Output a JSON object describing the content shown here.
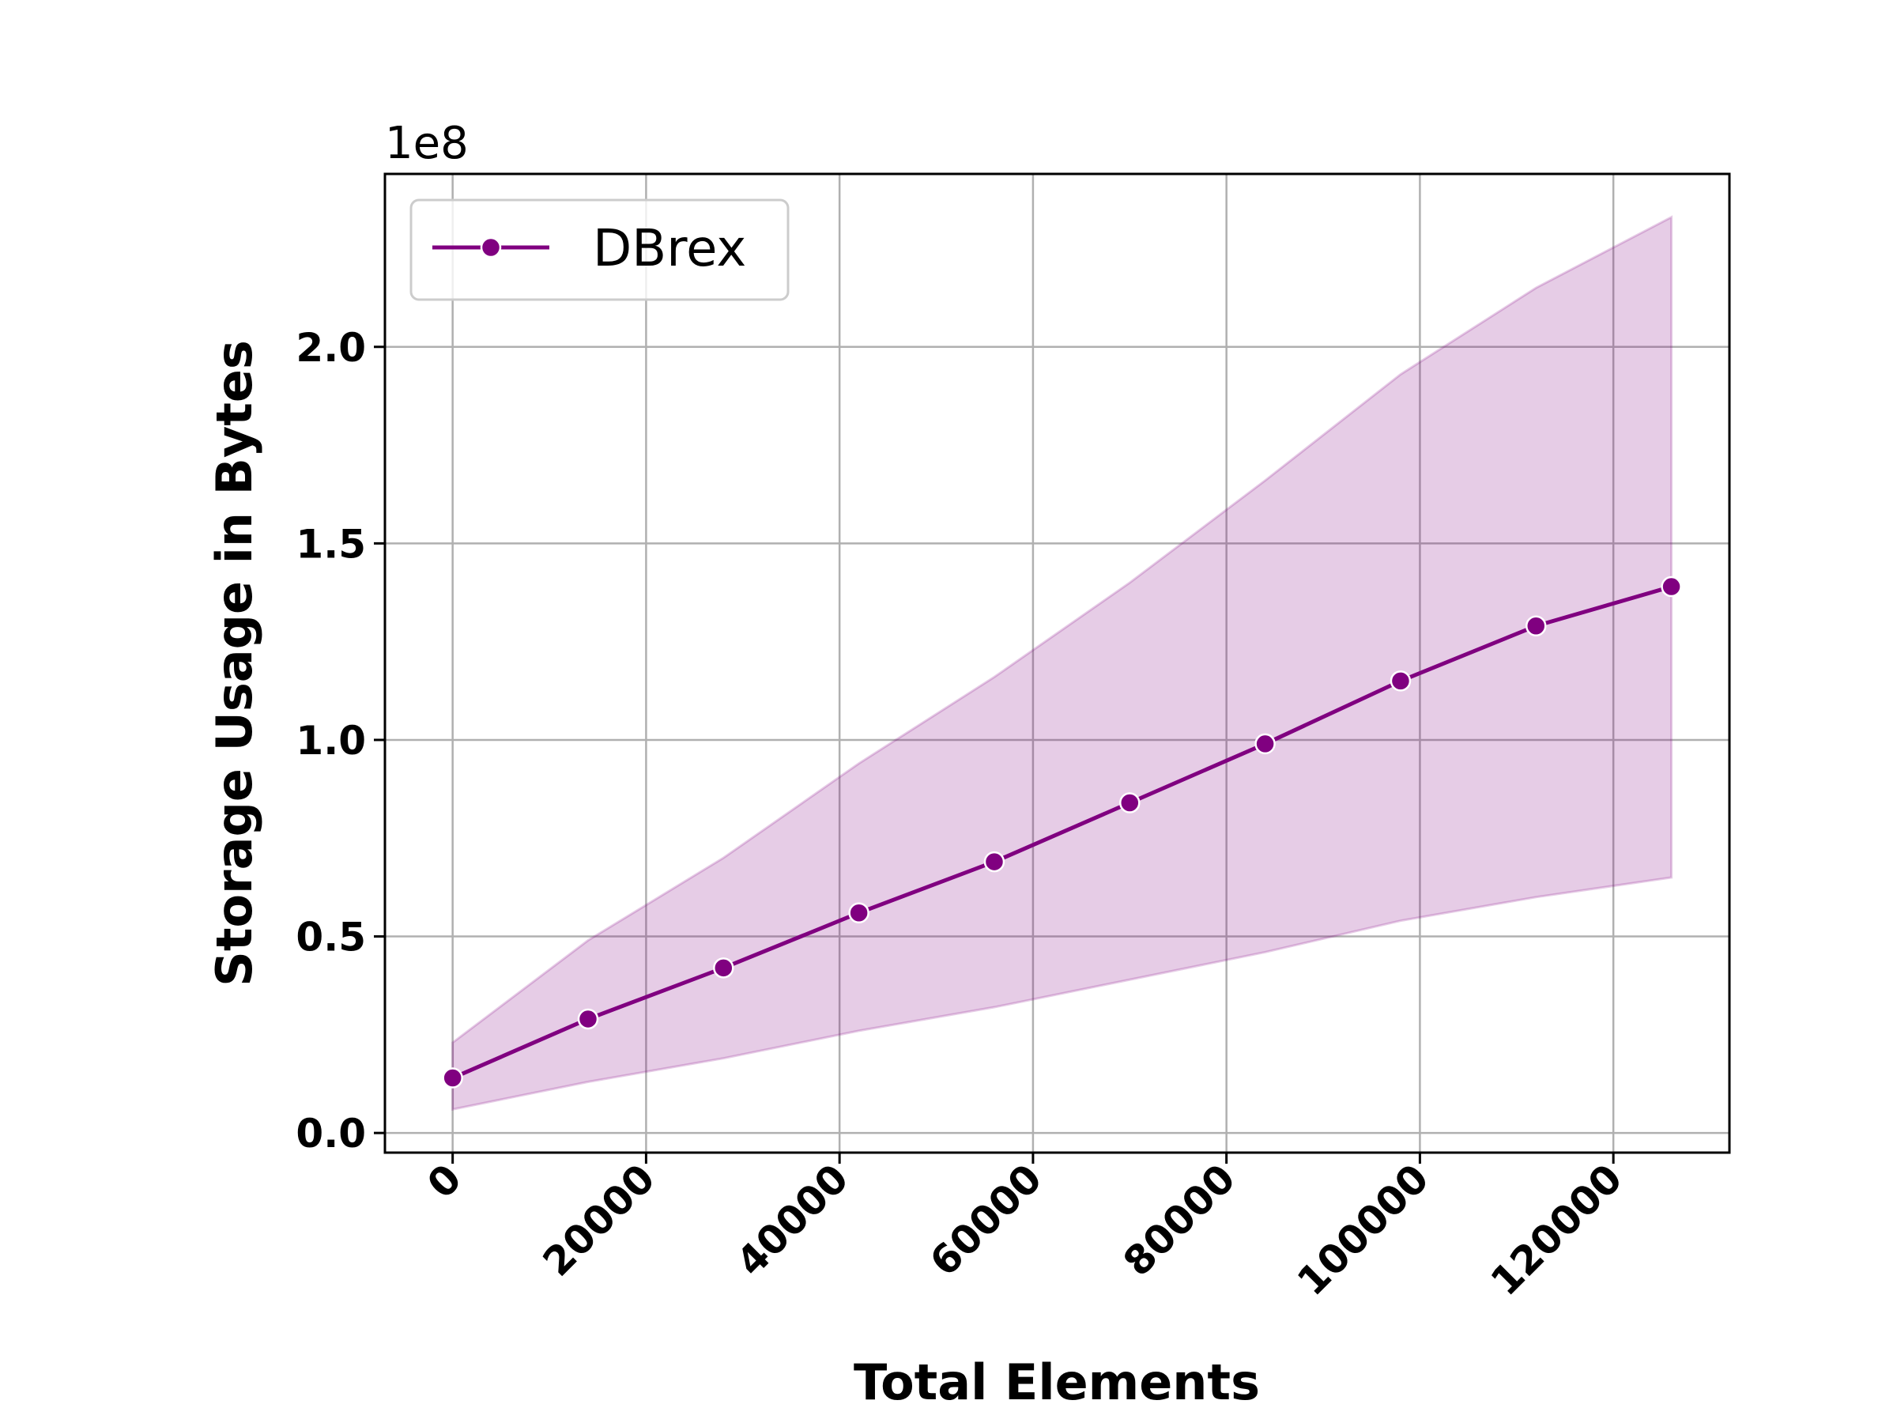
{
  "chart_data": {
    "type": "line",
    "xlabel": "Total Elements",
    "ylabel": "Storage Usage in Bytes",
    "y_offset_label": "1e8",
    "xlim": [
      -7000,
      132000
    ],
    "ylim": [
      -0.05,
      2.44
    ],
    "x_ticks": [
      0,
      20000,
      40000,
      60000,
      80000,
      100000,
      120000
    ],
    "x_tick_labels": [
      "0",
      "20000",
      "40000",
      "60000",
      "80000",
      "100000",
      "120000"
    ],
    "y_ticks": [
      0.0,
      0.5,
      1.0,
      1.5,
      2.0
    ],
    "y_tick_labels": [
      "0.0",
      "0.5",
      "1.0",
      "1.5",
      "2.0"
    ],
    "grid": true,
    "legend_position": "top-left",
    "colors": {
      "line": "#800080",
      "band": "#800080",
      "grid": "#b0b0b0"
    },
    "series": [
      {
        "name": "DBrex",
        "x": [
          0,
          14000,
          28000,
          42000,
          56000,
          70000,
          84000,
          98000,
          112000,
          126000
        ],
        "y": [
          0.14,
          0.29,
          0.42,
          0.56,
          0.69,
          0.84,
          0.99,
          1.15,
          1.29,
          1.39
        ],
        "band_upper": [
          0.23,
          0.49,
          0.7,
          0.94,
          1.16,
          1.4,
          1.66,
          1.93,
          2.15,
          2.33
        ],
        "band_lower": [
          0.06,
          0.13,
          0.19,
          0.26,
          0.32,
          0.39,
          0.46,
          0.54,
          0.6,
          0.65
        ]
      }
    ]
  }
}
